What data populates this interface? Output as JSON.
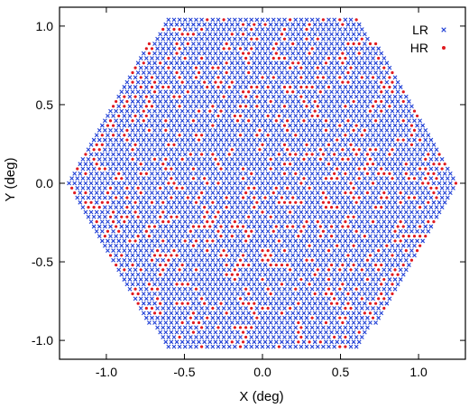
{
  "chart_data": {
    "type": "scatter",
    "title": "",
    "xlabel": "X (deg)",
    "ylabel": "Y (deg)",
    "xlim": [
      -1.3,
      1.3
    ],
    "ylim": [
      -1.12,
      1.12
    ],
    "xticks": [
      -1.0,
      -0.5,
      0.0,
      0.5,
      1.0
    ],
    "yticks": [
      -1.0,
      -0.5,
      0.0,
      0.5,
      1.0
    ],
    "xtick_labels": [
      "-1.0",
      "-0.5",
      "0.0",
      "0.5",
      "1.0"
    ],
    "ytick_labels": [
      "-1.0",
      "-0.5",
      "0.0",
      "0.5",
      "1.0"
    ],
    "grid": false,
    "legend_position": "top-right",
    "series": [
      {
        "name": "LR",
        "marker": "x",
        "color": "#1f3fd6"
      },
      {
        "name": "HR",
        "marker": "dot",
        "color": "#e0191f"
      }
    ],
    "field_shape": "hexagon",
    "hexagon_vertices": [
      [
        -0.63,
        1.05
      ],
      [
        0.63,
        1.05
      ],
      [
        1.25,
        0.0
      ],
      [
        0.63,
        -1.05
      ],
      [
        -0.63,
        -1.05
      ],
      [
        -1.25,
        0.0
      ]
    ],
    "grid_pitch_x": 0.0354,
    "grid_pitch_y": 0.0306,
    "hr_fraction": 0.2
  }
}
